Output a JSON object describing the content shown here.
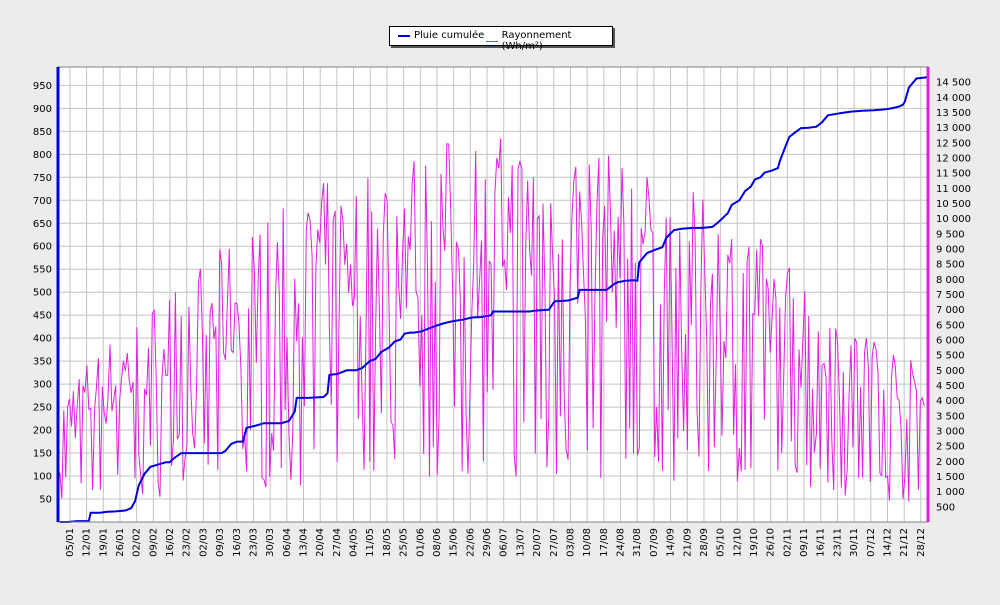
{
  "chart_data": {
    "type": "line",
    "legend": {
      "placement": "top-center",
      "items": [
        {
          "name": "Pluie cumulée",
          "color": "#0000dd"
        },
        {
          "name": "Rayonnement (Wh/m²)",
          "color": "#e020e0"
        }
      ]
    },
    "colors": {
      "rain": "#0000dd",
      "radiation": "#e020e0",
      "background": "#ececec",
      "plot_background": "#ffffff",
      "grid": "#c4c4c4"
    },
    "grid": true,
    "x_tick_labels": [
      "05/01",
      "12/01",
      "19/01",
      "26/01",
      "02/02",
      "09/02",
      "16/02",
      "23/02",
      "02/03",
      "09/03",
      "16/03",
      "23/03",
      "30/03",
      "06/04",
      "13/04",
      "20/04",
      "27/04",
      "04/05",
      "11/05",
      "18/05",
      "25/05",
      "01/06",
      "08/06",
      "15/06",
      "22/06",
      "29/06",
      "06/07",
      "13/07",
      "20/07",
      "27/07",
      "03/08",
      "10/08",
      "17/08",
      "24/08",
      "31/08",
      "07/09",
      "14/09",
      "21/09",
      "28/09",
      "05/10",
      "12/10",
      "19/10",
      "26/10",
      "02/11",
      "09/11",
      "16/11",
      "23/11",
      "30/11",
      "07/12",
      "14/12",
      "21/12",
      "28/12"
    ],
    "y_left": {
      "ylim": [
        0,
        990
      ],
      "ticks": [
        50,
        100,
        150,
        200,
        250,
        300,
        350,
        400,
        450,
        500,
        550,
        600,
        650,
        700,
        750,
        800,
        850,
        900,
        950
      ]
    },
    "y_right": {
      "ylim": [
        0,
        15000
      ],
      "ticks": [
        500,
        1000,
        1500,
        2000,
        2500,
        3000,
        3500,
        4000,
        4500,
        5000,
        5500,
        6000,
        6500,
        7000,
        7500,
        8000,
        8500,
        9000,
        9500,
        10000,
        10500,
        11000,
        11500,
        12000,
        12500,
        13000,
        13500,
        14000,
        14500
      ]
    },
    "series": [
      {
        "name": "Pluie cumulée",
        "axis": "left",
        "color": "#0000dd",
        "points": [
          [
            1,
            0
          ],
          [
            5,
            0
          ],
          [
            10,
            2
          ],
          [
            16,
            2
          ],
          [
            17,
            20
          ],
          [
            22,
            20
          ],
          [
            25,
            22
          ],
          [
            30,
            23
          ],
          [
            35,
            25
          ],
          [
            38,
            30
          ],
          [
            40,
            45
          ],
          [
            42,
            80
          ],
          [
            45,
            105
          ],
          [
            48,
            120
          ],
          [
            52,
            125
          ],
          [
            56,
            130
          ],
          [
            58,
            130
          ],
          [
            60,
            138
          ],
          [
            64,
            150
          ],
          [
            68,
            150
          ],
          [
            72,
            150
          ],
          [
            80,
            150
          ],
          [
            85,
            150
          ],
          [
            87,
            155
          ],
          [
            90,
            170
          ],
          [
            93,
            175
          ],
          [
            96,
            175
          ],
          [
            98,
            205
          ],
          [
            103,
            210
          ],
          [
            107,
            215
          ],
          [
            110,
            215
          ],
          [
            116,
            215
          ],
          [
            120,
            220
          ],
          [
            123,
            240
          ],
          [
            124,
            270
          ],
          [
            130,
            270
          ],
          [
            138,
            272
          ],
          [
            140,
            280
          ],
          [
            141,
            320
          ],
          [
            145,
            322
          ],
          [
            150,
            330
          ],
          [
            155,
            330
          ],
          [
            158,
            335
          ],
          [
            162,
            350
          ],
          [
            165,
            355
          ],
          [
            168,
            370
          ],
          [
            172,
            380
          ],
          [
            175,
            393
          ],
          [
            178,
            397
          ],
          [
            180,
            410
          ],
          [
            183,
            412
          ],
          [
            185,
            412
          ],
          [
            189,
            415
          ],
          [
            195,
            425
          ],
          [
            200,
            432
          ],
          [
            205,
            437
          ],
          [
            210,
            440
          ],
          [
            215,
            445
          ],
          [
            220,
            446
          ],
          [
            225,
            450
          ],
          [
            226,
            458
          ],
          [
            235,
            458
          ],
          [
            245,
            458
          ],
          [
            248,
            460
          ],
          [
            255,
            462
          ],
          [
            258,
            480
          ],
          [
            265,
            482
          ],
          [
            270,
            488
          ],
          [
            271,
            505
          ],
          [
            276,
            505
          ],
          [
            285,
            505
          ],
          [
            289,
            518
          ],
          [
            291,
            522
          ],
          [
            295,
            525
          ],
          [
            299,
            526
          ],
          [
            301,
            525
          ],
          [
            302,
            565
          ],
          [
            306,
            585
          ],
          [
            310,
            592
          ],
          [
            314,
            598
          ],
          [
            316,
            618
          ],
          [
            320,
            635
          ],
          [
            324,
            638
          ],
          [
            330,
            640
          ],
          [
            335,
            640
          ],
          [
            340,
            642
          ],
          [
            343,
            652
          ],
          [
            345,
            660
          ],
          [
            348,
            672
          ],
          [
            350,
            690
          ],
          [
            354,
            700
          ],
          [
            357,
            720
          ],
          [
            360,
            730
          ],
          [
            362,
            745
          ],
          [
            365,
            750
          ],
          [
            367,
            760
          ],
          [
            371,
            765
          ],
          [
            374,
            770
          ],
          [
            375,
            785
          ],
          [
            378,
            818
          ],
          [
            380,
            838
          ],
          [
            383,
            848
          ],
          [
            386,
            857
          ],
          [
            390,
            858
          ],
          [
            394,
            860
          ],
          [
            397,
            870
          ],
          [
            400,
            885
          ],
          [
            403,
            887
          ],
          [
            407,
            890
          ],
          [
            412,
            893
          ],
          [
            418,
            895
          ],
          [
            424,
            896
          ],
          [
            430,
            898
          ],
          [
            433,
            900
          ],
          [
            437,
            904
          ],
          [
            439,
            908
          ],
          [
            440,
            915
          ],
          [
            442,
            945
          ],
          [
            444,
            955
          ],
          [
            446,
            965
          ],
          [
            450,
            967
          ],
          [
            452,
            968
          ]
        ]
      },
      {
        "name": "Rayonnement (Wh/m²)",
        "axis": "right",
        "color": "#e020e0",
        "values_start_x": 1
      }
    ]
  }
}
